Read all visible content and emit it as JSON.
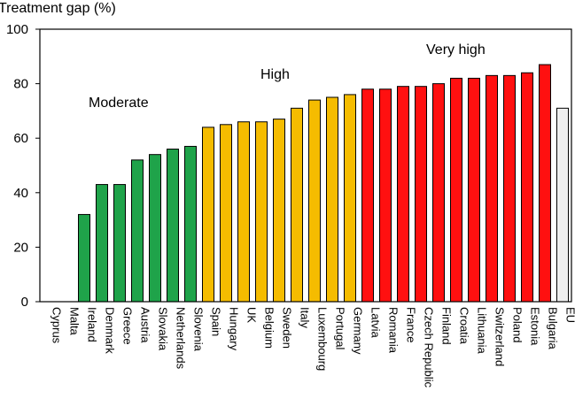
{
  "chart_data": {
    "type": "bar",
    "title": "",
    "xlabel": "",
    "ylabel": "Treatment gap (%)",
    "ylim": [
      0,
      100
    ],
    "yticks": [
      0,
      20,
      40,
      60,
      80,
      100
    ],
    "grid": false,
    "categories": [
      "Cyprus",
      "Malta",
      "Ireland",
      "Denmark",
      "Greece",
      "Austria",
      "Slovakia",
      "Netherlands",
      "Slovenia",
      "Spain",
      "Hungary",
      "UK",
      "Belgium",
      "Sweden",
      "Italy",
      "Luxembourg",
      "Portugal",
      "Germany",
      "Latvia",
      "Romania",
      "France",
      "Czech Republic",
      "Finland",
      "Croatia",
      "Lithuania",
      "Switzerland",
      "Poland",
      "Estonia",
      "Bulgaria",
      "EU"
    ],
    "values": [
      0,
      0,
      32,
      43,
      43,
      52,
      54,
      56,
      57,
      64,
      65,
      66,
      66,
      67,
      71,
      74,
      75,
      76,
      78,
      78,
      79,
      79,
      80,
      82,
      82,
      83,
      83,
      84,
      87,
      71
    ],
    "bar_groups": [
      "none",
      "none",
      "moderate",
      "moderate",
      "moderate",
      "moderate",
      "moderate",
      "moderate",
      "moderate",
      "high",
      "high",
      "high",
      "high",
      "high",
      "high",
      "high",
      "high",
      "high",
      "very_high",
      "very_high",
      "very_high",
      "very_high",
      "very_high",
      "very_high",
      "very_high",
      "very_high",
      "very_high",
      "very_high",
      "very_high",
      "eu"
    ],
    "group_colors": {
      "moderate": "#1fa34a",
      "high": "#f5bc00",
      "very_high": "#ff1010",
      "eu": "#efefef",
      "none": "#ffffff"
    },
    "annotations": [
      {
        "text": "Moderate",
        "group": "moderate"
      },
      {
        "text": "High",
        "group": "high"
      },
      {
        "text": "Very high",
        "group": "very_high"
      }
    ]
  }
}
